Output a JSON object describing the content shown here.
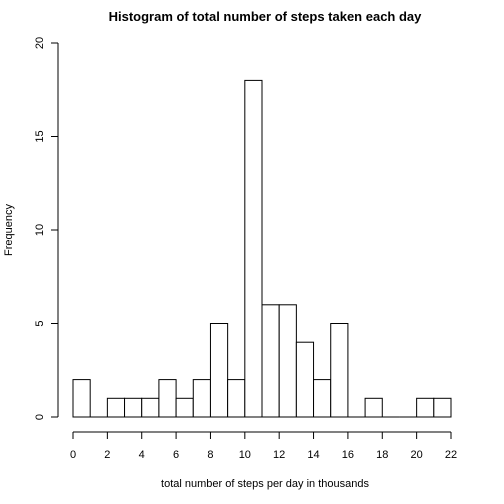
{
  "chart_data": {
    "type": "bar",
    "title": "Histogram of total number of steps taken each day",
    "xlabel": "total number of steps per day in thousands",
    "ylabel": "Frequency",
    "bin_width": 1,
    "bins": [
      {
        "start": 0,
        "count": 2
      },
      {
        "start": 1,
        "count": 0
      },
      {
        "start": 2,
        "count": 1
      },
      {
        "start": 3,
        "count": 1
      },
      {
        "start": 4,
        "count": 1
      },
      {
        "start": 5,
        "count": 2
      },
      {
        "start": 6,
        "count": 1
      },
      {
        "start": 7,
        "count": 2
      },
      {
        "start": 8,
        "count": 5
      },
      {
        "start": 9,
        "count": 2
      },
      {
        "start": 10,
        "count": 18
      },
      {
        "start": 11,
        "count": 6
      },
      {
        "start": 12,
        "count": 6
      },
      {
        "start": 13,
        "count": 4
      },
      {
        "start": 14,
        "count": 2
      },
      {
        "start": 15,
        "count": 5
      },
      {
        "start": 16,
        "count": 0
      },
      {
        "start": 17,
        "count": 1
      },
      {
        "start": 18,
        "count": 0
      },
      {
        "start": 19,
        "count": 0
      },
      {
        "start": 20,
        "count": 1
      },
      {
        "start": 21,
        "count": 1
      }
    ],
    "xlim": [
      0,
      22
    ],
    "ylim": [
      0,
      20
    ],
    "x_ticks": [
      0,
      2,
      4,
      6,
      8,
      10,
      12,
      14,
      16,
      18,
      20,
      22
    ],
    "y_ticks": [
      0,
      5,
      10,
      15,
      20
    ],
    "grid": false,
    "legend": "none"
  }
}
